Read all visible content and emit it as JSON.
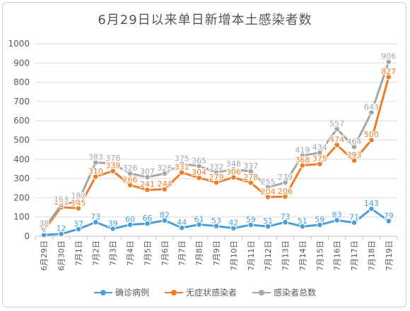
{
  "chart_data": {
    "type": "line",
    "title": "6月29日以来单日新增本土感染者数",
    "categories": [
      "6月29日",
      "6月30日",
      "7月1日",
      "7月2日",
      "7月3日",
      "7月4日",
      "7月5日",
      "7月6日",
      "7月7日",
      "7月8日",
      "7月9日",
      "7月10日",
      "7月11日",
      "7月12日",
      "7月13日",
      "7月14日",
      "7月15日",
      "7月16日",
      "7月17日",
      "7月18日",
      "7月19日"
    ],
    "ylim": [
      0,
      1000
    ],
    "yticks": [
      0,
      100,
      200,
      300,
      400,
      500,
      600,
      700,
      800,
      900,
      1000
    ],
    "grid": true,
    "legend_position": "bottom",
    "series": [
      {
        "name": "确诊病例",
        "color": "#4a9fd8",
        "values": [
          7,
          12,
          37,
          73,
          39,
          60,
          66,
          82,
          44,
          61,
          53,
          42,
          59,
          51,
          73,
          51,
          59,
          83,
          71,
          143,
          79
        ]
      },
      {
        "name": "无症状感染者",
        "color": "#ef7d28",
        "values": [
          31,
          151,
          145,
          310,
          339,
          266,
          241,
          244,
          331,
          304,
          279,
          306,
          278,
          204,
          206,
          368,
          375,
          474,
          393,
          500,
          827
        ]
      },
      {
        "name": "感染者总数",
        "color": "#a5a5a5",
        "values": [
          38,
          163,
          182,
          383,
          378,
          326,
          307,
          326,
          375,
          365,
          332,
          348,
          337,
          255,
          279,
          419,
          434,
          557,
          464,
          643,
          906
        ]
      }
    ]
  }
}
